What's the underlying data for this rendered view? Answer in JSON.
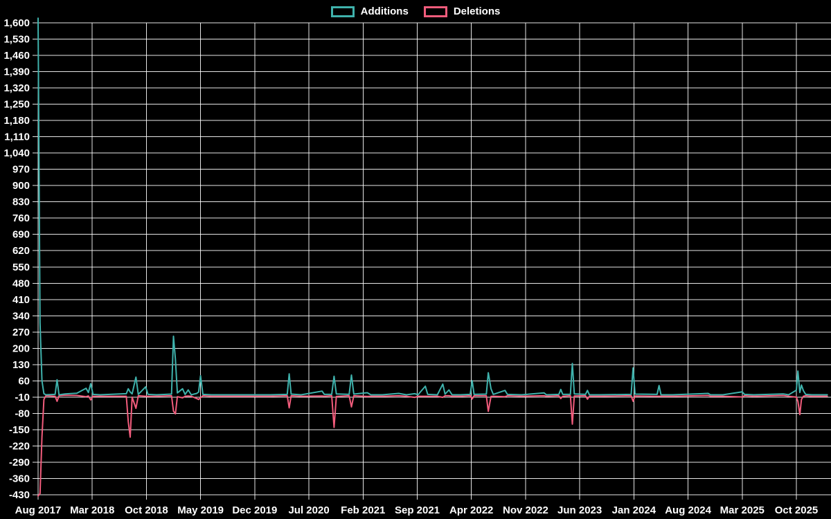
{
  "page": {
    "background": "#000000",
    "text_color": "#ffffff",
    "grid_color": "#ffffff"
  },
  "legend": {
    "items": [
      {
        "label": "Additions",
        "color": "#3fb2ac"
      },
      {
        "label": "Deletions",
        "color": "#f25c7c"
      }
    ]
  },
  "chart_data": {
    "type": "line",
    "title": "",
    "legend_position": "top",
    "grid": true,
    "x_axis": {
      "tick_labels": [
        "Aug 2017",
        "Mar 2018",
        "Oct 2018",
        "May 2019",
        "Dec 2019",
        "Jul 2020",
        "Feb 2021",
        "Sep 2021",
        "Apr 2022",
        "Nov 2022",
        "Jun 2023",
        "Jan 2024",
        "Aug 2024",
        "Mar 2025",
        "Oct 2025"
      ],
      "tick_interval_months": 7,
      "range_months": [
        0,
        102
      ]
    },
    "y_axis": {
      "tick_labels": [
        "1,600",
        "1,530",
        "1,460",
        "1,390",
        "1,320",
        "1,250",
        "1,180",
        "1,110",
        "1,040",
        "970",
        "900",
        "830",
        "760",
        "690",
        "620",
        "550",
        "480",
        "410",
        "340",
        "270",
        "200",
        "130",
        "60",
        "-10",
        "-80",
        "-150",
        "-220",
        "-290",
        "-360",
        "-430"
      ],
      "tick_values": [
        1600,
        1530,
        1460,
        1390,
        1320,
        1250,
        1180,
        1110,
        1040,
        970,
        900,
        830,
        760,
        690,
        620,
        550,
        480,
        410,
        340,
        270,
        200,
        130,
        60,
        -10,
        -80,
        -150,
        -220,
        -290,
        -360,
        -430
      ],
      "max": 1600,
      "min": -430,
      "step": 70
    },
    "x_months": [
      0,
      0.25,
      0.5,
      0.75,
      1.0,
      2.2,
      2.45,
      2.7,
      3.5,
      5.0,
      6.2,
      6.5,
      6.8,
      7.1,
      8.0,
      11.4,
      11.65,
      11.9,
      12.15,
      12.65,
      12.95,
      13.9,
      14.2,
      15.3,
      17.25,
      17.5,
      17.75,
      18.0,
      18.67,
      19.0,
      19.4,
      19.8,
      20.5,
      20.75,
      21.0,
      21.3,
      22.4,
      26.0,
      30.0,
      32.2,
      32.45,
      32.7,
      34.0,
      36.7,
      37.0,
      37.95,
      38.25,
      38.55,
      40.2,
      40.5,
      40.8,
      42.55,
      43.0,
      44.5,
      46.6,
      47.6,
      48.7,
      49.1,
      50.05,
      50.35,
      51.6,
      52.3,
      52.6,
      53.1,
      53.5,
      54.6,
      55.85,
      56.1,
      56.35,
      57.93,
      58.18,
      58.53,
      58.83,
      60.35,
      60.65,
      62.5,
      65.4,
      65.7,
      67.3,
      67.55,
      67.8,
      68.8,
      69.05,
      69.3,
      70.75,
      71.0,
      71.25,
      72.5,
      76.65,
      76.9,
      77.15,
      80.0,
      80.25,
      80.5,
      82.0,
      86.6,
      86.9,
      88.5,
      91.0,
      91.3,
      92.5,
      96.3,
      97.0,
      98.0,
      98.2,
      98.45,
      98.65,
      98.9,
      99.2,
      100.0,
      102.0
    ],
    "series": [
      {
        "name": "Additions",
        "color": "#3fb2ac",
        "values": [
          1620,
          310,
          60,
          5,
          0,
          2,
          65,
          0,
          4,
          7,
          28,
          10,
          48,
          2,
          0,
          5,
          26,
          12,
          4,
          76,
          2,
          34,
          2,
          0,
          3,
          252,
          153,
          8,
          26,
          2,
          21,
          0,
          6,
          12,
          82,
          2,
          0,
          0,
          0,
          2,
          90,
          3,
          0,
          16,
          2,
          2,
          80,
          4,
          2,
          85,
          3,
          9,
          0,
          0,
          6,
          0,
          5,
          0,
          37,
          2,
          0,
          46,
          3,
          21,
          0,
          0,
          2,
          61,
          2,
          3,
          95,
          26,
          2,
          19,
          2,
          0,
          8,
          0,
          2,
          23,
          2,
          2,
          135,
          4,
          2,
          19,
          0,
          0,
          2,
          116,
          3,
          2,
          40,
          0,
          0,
          6,
          0,
          0,
          13,
          2,
          0,
          4,
          0,
          20,
          102,
          10,
          42,
          18,
          2,
          0,
          0
        ]
      },
      {
        "name": "Deletions",
        "color": "#f25c7c",
        "values": [
          -435,
          -425,
          -180,
          -20,
          -4,
          -6,
          -28,
          -4,
          -2,
          -3,
          -8,
          -5,
          -22,
          -6,
          -6,
          -6,
          -115,
          -182,
          -10,
          -58,
          -4,
          -6,
          -6,
          -6,
          -4,
          -70,
          -82,
          -8,
          -13,
          -6,
          -5,
          -6,
          -16,
          -20,
          -12,
          -4,
          -6,
          -6,
          -6,
          -4,
          -56,
          -4,
          -6,
          -5,
          -6,
          -4,
          -140,
          -7,
          -4,
          -52,
          -4,
          -7,
          -6,
          -6,
          -4,
          -6,
          -11,
          -6,
          -6,
          -6,
          -6,
          -11,
          -4,
          -4,
          -6,
          -6,
          -4,
          -18,
          -4,
          -4,
          -71,
          -7,
          -6,
          -8,
          -4,
          -6,
          -4,
          -6,
          -4,
          -16,
          -6,
          -4,
          -126,
          -5,
          -4,
          -19,
          -6,
          -6,
          -4,
          -28,
          -5,
          -6,
          -6,
          -6,
          -6,
          -3,
          -6,
          -6,
          -9,
          -4,
          -6,
          -3,
          -6,
          -10,
          -28,
          -85,
          -20,
          -6,
          -4,
          -6,
          -6
        ]
      }
    ]
  }
}
